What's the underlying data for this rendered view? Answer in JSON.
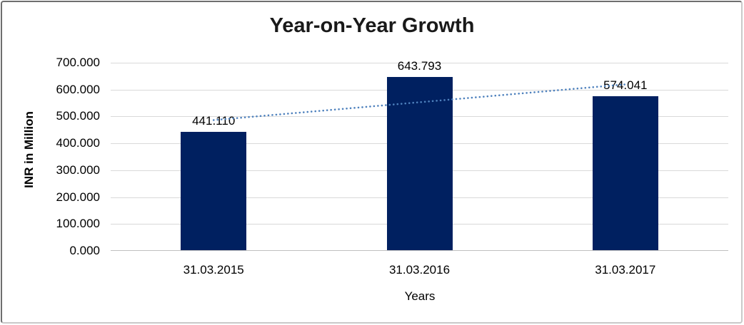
{
  "chart_data": {
    "type": "bar",
    "title": "Year-on-Year Growth",
    "xlabel": "Years",
    "ylabel": "INR in Million",
    "categories": [
      "31.03.2015",
      "31.03.2016",
      "31.03.2017"
    ],
    "values": [
      441110,
      643793,
      574041
    ],
    "value_labels": [
      "441.110",
      "643.793",
      "574.041"
    ],
    "ylim": [
      0,
      700000
    ],
    "ytick_interval": 100000,
    "ytick_labels": [
      "0.000",
      "100.000",
      "200.000",
      "300.000",
      "400.000",
      "500.000",
      "600.000",
      "700.000"
    ],
    "grid": true,
    "legend": false,
    "bar_color": "#002060",
    "trendline": {
      "type": "linear",
      "style": "dotted",
      "color": "#4E81BD",
      "start_value": 486500,
      "end_value": 619400
    }
  }
}
